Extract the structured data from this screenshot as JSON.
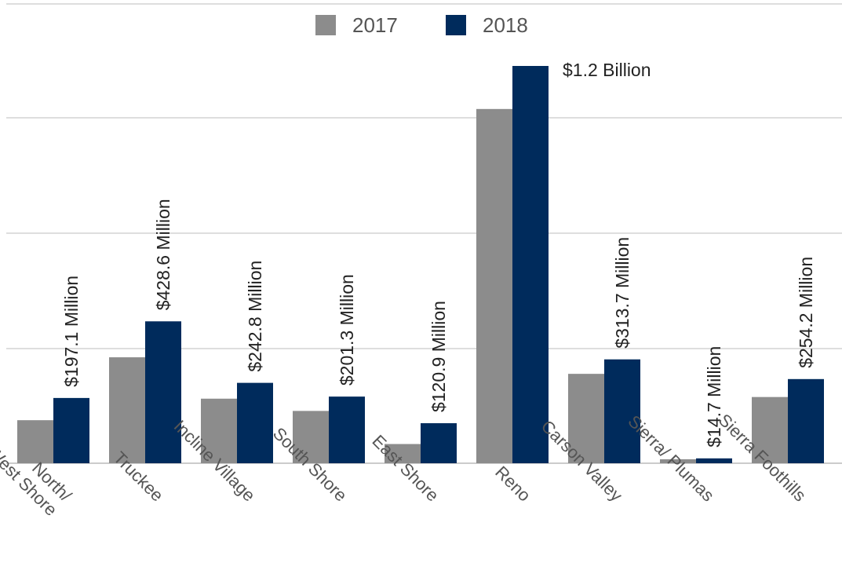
{
  "chart_data": {
    "type": "bar",
    "title": "",
    "xlabel": "",
    "ylabel": "",
    "ylim": [
      0,
      1400
    ],
    "grid": true,
    "legend_position": "top-center",
    "categories": [
      "North/ West Shore",
      "Truckee",
      "Incline Village",
      "South Shore",
      "East Shore",
      "Reno",
      "Carson Valley",
      "Sierra/ Plumas",
      "Sierra Foothills"
    ],
    "series": [
      {
        "name": "2017",
        "color": "#8c8c8c",
        "values": [
          130,
          320,
          195,
          158,
          58,
          1070,
          270,
          12,
          200
        ]
      },
      {
        "name": "2018",
        "color": "#002b5c",
        "values": [
          197.1,
          428.6,
          242.8,
          201.3,
          120.9,
          1200,
          313.7,
          14.7,
          254.2
        ]
      }
    ],
    "data_labels": [
      "$197.1 Million",
      "$428.6 Million",
      "$242.8 Million",
      "$201.3 Million",
      "$120.9 Million",
      "$1.2 Billion",
      "$313.7 Million",
      "$14.7 Million",
      "$254.2 Million"
    ],
    "data_label_series": "2018"
  }
}
